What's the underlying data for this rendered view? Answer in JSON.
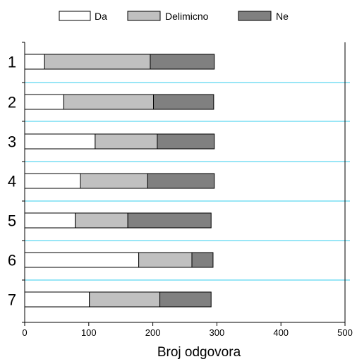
{
  "chart_data": {
    "type": "bar",
    "orientation": "horizontal",
    "stacked": true,
    "categories": [
      "1",
      "2",
      "3",
      "4",
      "5",
      "6",
      "7"
    ],
    "series": [
      {
        "name": "Da",
        "values": [
          31,
          61,
          110,
          87,
          79,
          178,
          101
        ],
        "color": "#ffffff"
      },
      {
        "name": "Delimicno",
        "values": [
          165,
          140,
          97,
          105,
          82,
          83,
          110
        ],
        "color": "#c0c0c0"
      },
      {
        "name": "Ne",
        "values": [
          100,
          94,
          89,
          104,
          130,
          33,
          80
        ],
        "color": "#808080"
      }
    ],
    "xlabel": "Broj odgovora",
    "ylabel": "",
    "xlim": [
      0,
      500
    ],
    "xticks": [
      0,
      100,
      200,
      300,
      400,
      500
    ],
    "legend_position": "top",
    "separator_color": "#33ccee"
  }
}
